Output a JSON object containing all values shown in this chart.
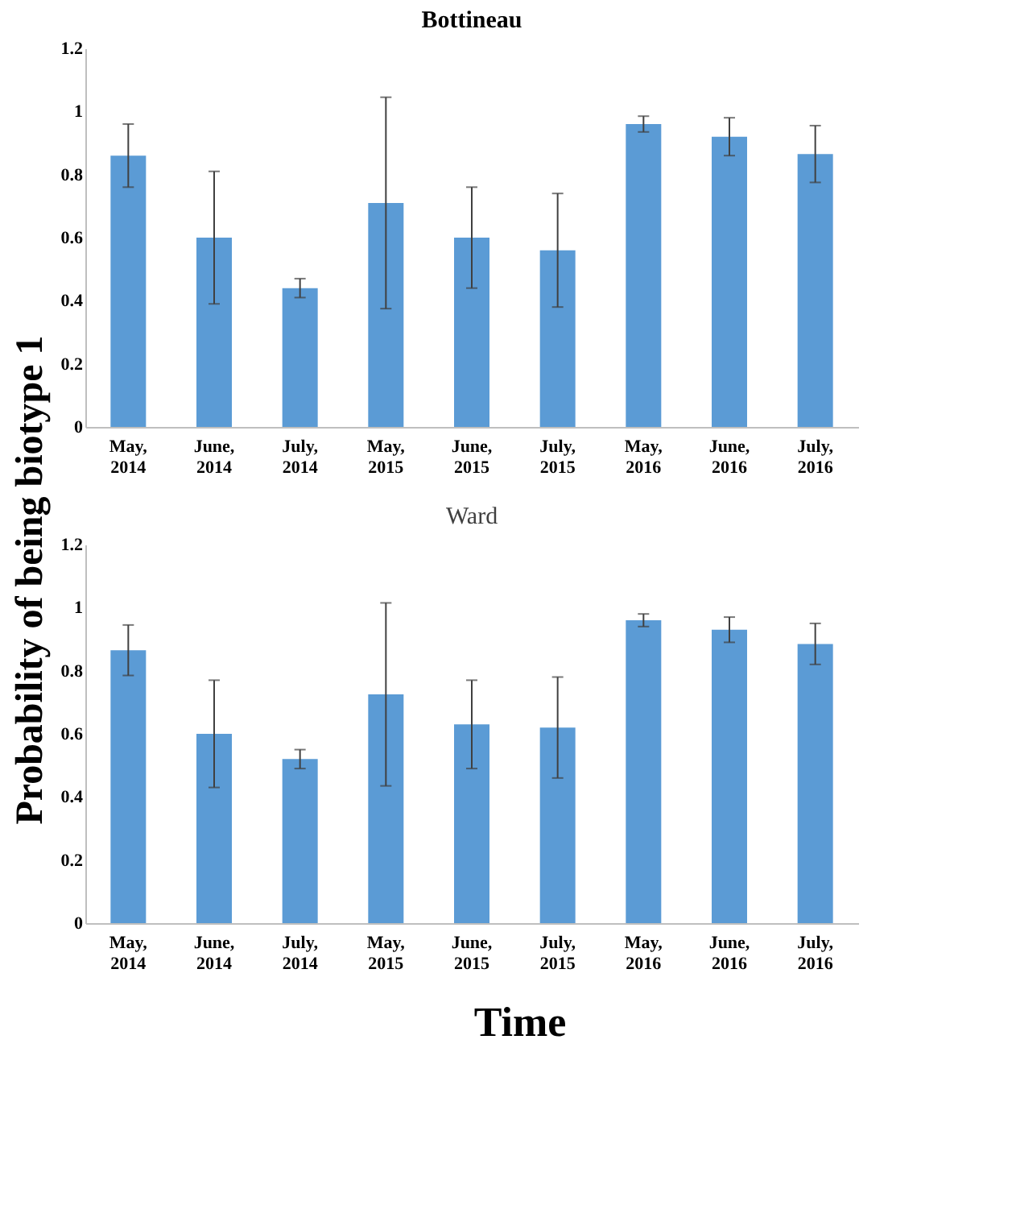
{
  "chart_data": [
    {
      "type": "bar",
      "title": "Bottineau",
      "ylabel": "Probability of being biotype 1",
      "categories": [
        "May, 2014",
        "June, 2014",
        "July, 2014",
        "May, 2015",
        "June, 2015",
        "July, 2015",
        "May, 2016",
        "June, 2016",
        "July, 2016"
      ],
      "series": [
        {
          "color": "#5b9bd5",
          "values": [
            0.86,
            0.6,
            0.44,
            0.71,
            0.6,
            0.56,
            0.96,
            0.92,
            0.865
          ],
          "errors": [
            0.1,
            0.21,
            0.03,
            0.335,
            0.16,
            0.18,
            0.025,
            0.06,
            0.09
          ]
        }
      ],
      "ylim": [
        0,
        1.2
      ],
      "yticks": [
        0,
        0.2,
        0.4,
        0.6,
        0.8,
        1,
        1.2
      ]
    },
    {
      "type": "bar",
      "title": "Ward",
      "xlabel": "Time",
      "categories": [
        "May, 2014",
        "June, 2014",
        "July, 2014",
        "May, 2015",
        "June, 2015",
        "July, 2015",
        "May, 2016",
        "June, 2016",
        "July, 2016"
      ],
      "series": [
        {
          "color": "#5b9bd5",
          "values": [
            0.865,
            0.6,
            0.52,
            0.725,
            0.63,
            0.62,
            0.96,
            0.93,
            0.885
          ],
          "errors": [
            0.08,
            0.17,
            0.03,
            0.29,
            0.14,
            0.16,
            0.02,
            0.04,
            0.065
          ]
        }
      ],
      "ylim": [
        0,
        1.2
      ],
      "yticks": [
        0,
        0.2,
        0.4,
        0.6,
        0.8,
        1,
        1.2
      ]
    }
  ]
}
